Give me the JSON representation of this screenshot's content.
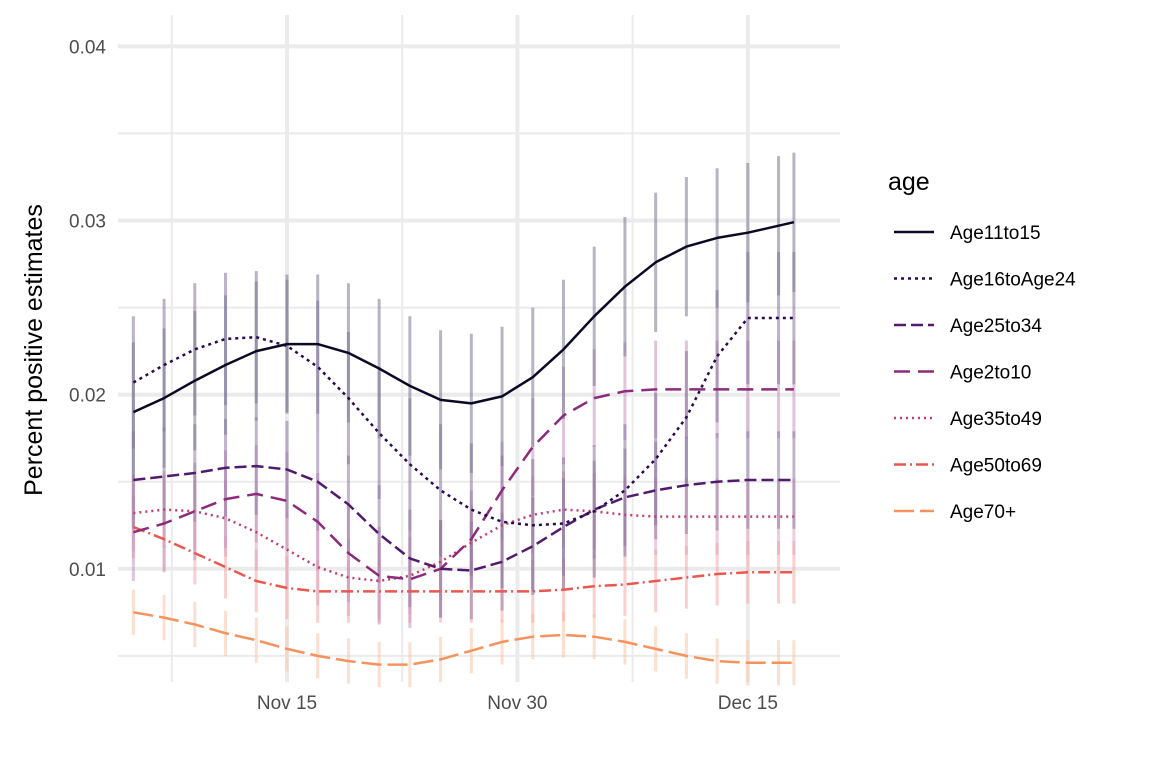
{
  "chart_data": {
    "type": "line",
    "title": "",
    "xlabel": "",
    "ylabel": "Percent positive estimates",
    "x_axis": {
      "type": "date",
      "range": [
        "2020-11-04",
        "2020-12-21"
      ],
      "ticks": [
        {
          "date": "2020-11-15",
          "label": "Nov 15"
        },
        {
          "date": "2020-11-30",
          "label": "Nov 30"
        },
        {
          "date": "2020-12-15",
          "label": "Dec 15"
        }
      ]
    },
    "y_axis": {
      "range": [
        0.0035,
        0.0418
      ],
      "ticks": [
        {
          "value": 0.01,
          "label": "0.01"
        },
        {
          "value": 0.02,
          "label": "0.02"
        },
        {
          "value": 0.03,
          "label": "0.03"
        },
        {
          "value": 0.04,
          "label": "0.04"
        }
      ]
    },
    "grid": true,
    "legend": {
      "title": "age",
      "position": "right"
    },
    "x": [
      "2020-11-05",
      "2020-11-07",
      "2020-11-09",
      "2020-11-11",
      "2020-11-13",
      "2020-11-15",
      "2020-11-17",
      "2020-11-19",
      "2020-11-21",
      "2020-11-23",
      "2020-11-25",
      "2020-11-27",
      "2020-11-29",
      "2020-12-01",
      "2020-12-03",
      "2020-12-05",
      "2020-12-07",
      "2020-12-09",
      "2020-12-11",
      "2020-12-13",
      "2020-12-15",
      "2020-12-17",
      "2020-12-18"
    ],
    "series": [
      {
        "name": "Age11to15",
        "color": "#0b0924",
        "dash": "",
        "ci_color": "#7a7893",
        "ci_halfwidth": 0.004,
        "values": [
          0.019,
          0.0198,
          0.0208,
          0.0217,
          0.0225,
          0.0229,
          0.0229,
          0.0224,
          0.0215,
          0.0205,
          0.0197,
          0.0195,
          0.0199,
          0.021,
          0.0226,
          0.0245,
          0.0262,
          0.0276,
          0.0285,
          0.029,
          0.0293,
          0.0297,
          0.0299
        ]
      },
      {
        "name": "Age16toAge24",
        "color": "#2a0a4f",
        "dash": "3,4",
        "ci_color": "#86729a",
        "ci_halfwidth": 0.0038,
        "values": [
          0.0207,
          0.0217,
          0.0226,
          0.0232,
          0.0233,
          0.0228,
          0.0216,
          0.0198,
          0.0178,
          0.016,
          0.0145,
          0.0134,
          0.0127,
          0.0125,
          0.0126,
          0.0133,
          0.0145,
          0.0163,
          0.0187,
          0.0222,
          0.0244,
          0.0244,
          0.0244
        ]
      },
      {
        "name": "Age25to34",
        "color": "#511a6e",
        "dash": "12,5",
        "ci_color": "#9478a6",
        "ci_halfwidth": 0.0028,
        "values": [
          0.0151,
          0.0153,
          0.0155,
          0.0158,
          0.0159,
          0.0157,
          0.015,
          0.0137,
          0.012,
          0.0106,
          0.01,
          0.0099,
          0.0104,
          0.0113,
          0.0124,
          0.0134,
          0.0141,
          0.0145,
          0.0148,
          0.015,
          0.0151,
          0.0151,
          0.0151
        ]
      },
      {
        "name": "Age2to10",
        "color": "#8c2a7b",
        "dash": "16,8",
        "ci_color": "#c493be",
        "ci_halfwidth": 0.0028,
        "values": [
          0.0121,
          0.0126,
          0.0133,
          0.014,
          0.0143,
          0.0139,
          0.0127,
          0.0109,
          0.0096,
          0.0094,
          0.01,
          0.0117,
          0.0145,
          0.017,
          0.0188,
          0.0198,
          0.0202,
          0.0203,
          0.0203,
          0.0203,
          0.0203,
          0.0203,
          0.0203
        ]
      },
      {
        "name": "Age35to49",
        "color": "#c43c6b",
        "dash": "2,4",
        "ci_color": "#e2a3b9",
        "ci_halfwidth": 0.0022,
        "values": [
          0.0132,
          0.0134,
          0.0133,
          0.0129,
          0.0121,
          0.0111,
          0.0101,
          0.0095,
          0.0093,
          0.0096,
          0.0104,
          0.0115,
          0.0125,
          0.0131,
          0.0134,
          0.0133,
          0.0131,
          0.013,
          0.013,
          0.013,
          0.013,
          0.013,
          0.013
        ]
      },
      {
        "name": "Age50to69",
        "color": "#e9574f",
        "dash": "12,4,2,4",
        "ci_color": "#f4aaa5",
        "ci_halfwidth": 0.0018,
        "values": [
          0.0124,
          0.0117,
          0.0109,
          0.0101,
          0.0093,
          0.0089,
          0.0087,
          0.0087,
          0.0087,
          0.0087,
          0.0087,
          0.0087,
          0.0087,
          0.0087,
          0.0088,
          0.009,
          0.0091,
          0.0093,
          0.0095,
          0.0097,
          0.0098,
          0.0098,
          0.0098
        ]
      },
      {
        "name": "Age70+",
        "color": "#f5925d",
        "dash": "20,6",
        "ci_color": "#f9c5a5",
        "ci_halfwidth": 0.0013,
        "values": [
          0.0075,
          0.0072,
          0.0068,
          0.0063,
          0.0059,
          0.0054,
          0.005,
          0.0047,
          0.0045,
          0.0045,
          0.0048,
          0.0053,
          0.0058,
          0.0061,
          0.0062,
          0.0061,
          0.0058,
          0.0054,
          0.005,
          0.0047,
          0.0046,
          0.0046,
          0.0046
        ]
      }
    ]
  }
}
